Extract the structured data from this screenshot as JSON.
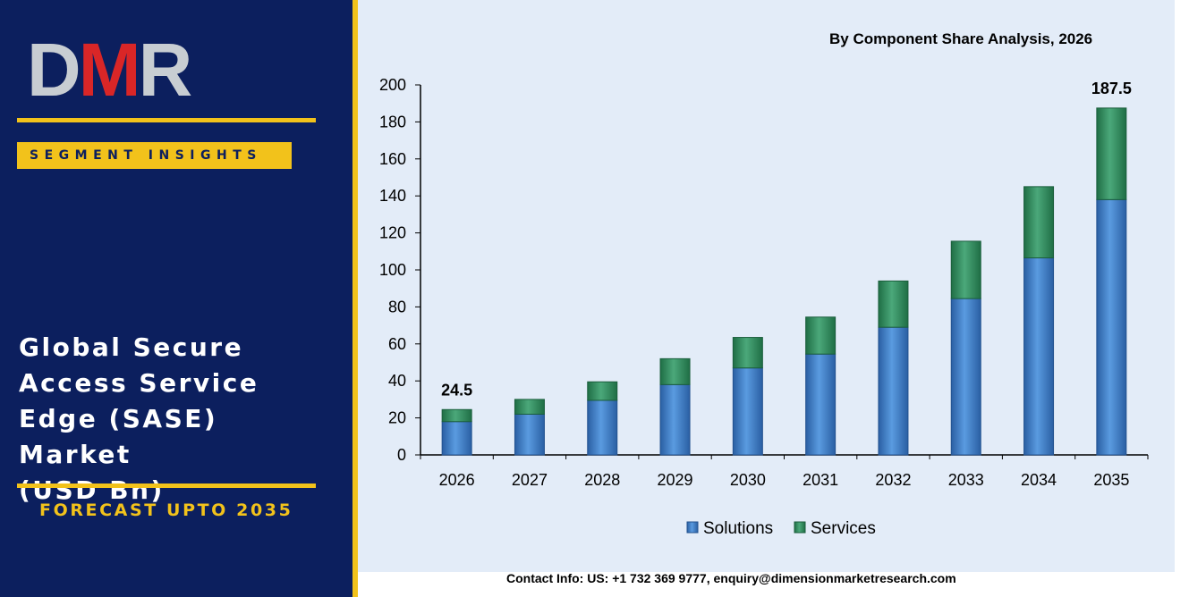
{
  "brand": {
    "logo_text_1": "D",
    "logo_text_2": "M",
    "logo_text_3": "R",
    "segment_label": "SEGMENT INSIGHTS",
    "title_lines": [
      "Global Secure",
      "Access Service",
      "Edge (SASE) Market",
      "(USD Bn)"
    ],
    "forecast_label": "FORECAST UPTO 2035"
  },
  "contact": "Contact Info: US: +1 732 369 9777, enquiry@dimensionmarketresearch.com",
  "colors": {
    "left_panel": "#0c1f5e",
    "accent": "#f2c21b",
    "logo_gray": "#c8cdd2",
    "logo_red": "#d92627",
    "solutions": "#3f7fc9",
    "services": "#2f8f5f",
    "chart_bg": "#e3ecf8"
  },
  "chart_data": {
    "type": "bar",
    "stacked": true,
    "title": "By Component Share Analysis, 2026",
    "categories": [
      "2026",
      "2027",
      "2028",
      "2029",
      "2030",
      "2031",
      "2032",
      "2033",
      "2034",
      "2035"
    ],
    "series": [
      {
        "name": "Solutions",
        "values": [
          18,
          22,
          29.5,
          38,
          47,
          54.5,
          69,
          84.5,
          106.5,
          138
        ]
      },
      {
        "name": "Services",
        "values": [
          6.5,
          8,
          10,
          14,
          16.5,
          20,
          25,
          31,
          38.5,
          49.5
        ]
      }
    ],
    "yticks": [
      "0",
      "20",
      "40",
      "60",
      "80",
      "100",
      "120",
      "140",
      "160",
      "180",
      "200"
    ],
    "ylim": [
      0,
      200
    ],
    "data_labels": [
      {
        "category": "2026",
        "text": "24.5"
      },
      {
        "category": "2035",
        "text": "187.5"
      }
    ],
    "legend_position": "bottom",
    "grid": false
  }
}
